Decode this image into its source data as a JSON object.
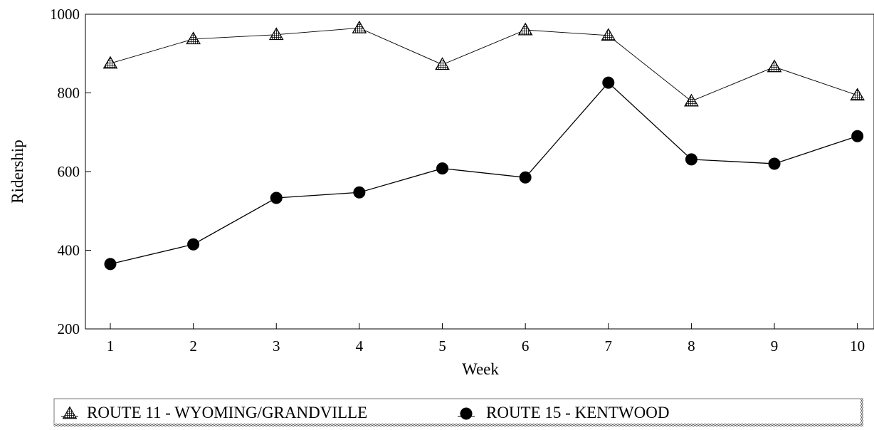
{
  "chart_data": {
    "type": "line",
    "xlabel": "Week",
    "ylabel": "Ridership",
    "x": [
      1,
      2,
      3,
      4,
      5,
      6,
      7,
      8,
      9,
      10
    ],
    "xlim": [
      0.7,
      10.2
    ],
    "ylim": [
      200,
      1000
    ],
    "yticks": [
      200,
      400,
      600,
      800,
      1000
    ],
    "grid": false,
    "legend_position": "bottom",
    "series": [
      {
        "name": "ROUTE 11 - WYOMING/GRANDVILLE",
        "marker": "triangle-hatched",
        "color": "#000000",
        "values": [
          875,
          937,
          948,
          965,
          872,
          960,
          946,
          779,
          866,
          794
        ]
      },
      {
        "name": "ROUTE 15 - KENTWOOD",
        "marker": "filled-circle",
        "color": "#000000",
        "values": [
          365,
          415,
          533,
          547,
          608,
          585,
          826,
          631,
          620,
          690
        ]
      }
    ]
  }
}
